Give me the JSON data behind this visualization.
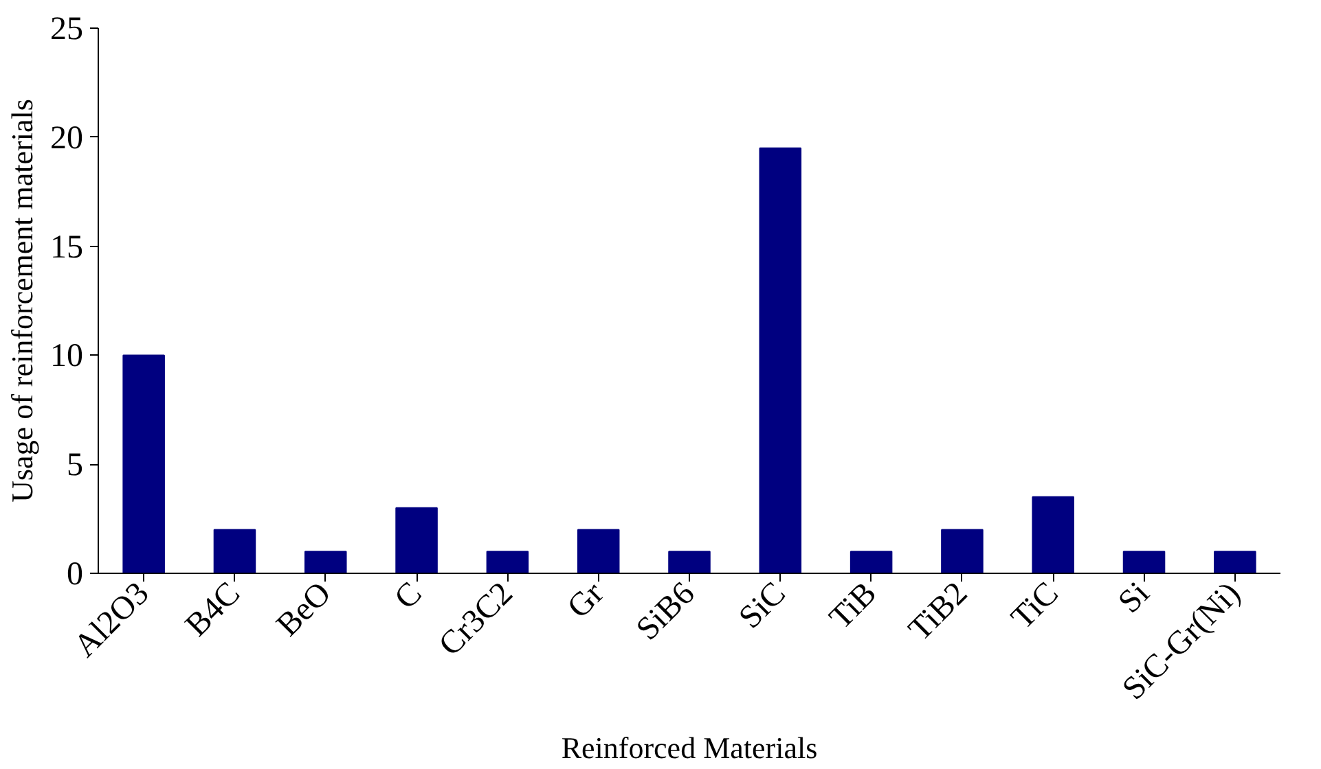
{
  "chart_data": {
    "type": "bar",
    "xlabel": "Reinforced Materials",
    "ylabel": "Usage of reinforcement materials",
    "categories": [
      "Al2O3",
      "B4C",
      "BeO",
      "C",
      "Cr3C2",
      "Gr",
      "SiB6",
      "SiC",
      "TiB",
      "TiB2",
      "TiC",
      "Si",
      "SiC-Gr(Ni)"
    ],
    "values": [
      10,
      2,
      1,
      3,
      1,
      2,
      1,
      19.5,
      1,
      2,
      3.5,
      1,
      1
    ],
    "color": "#000080",
    "ylim": [
      0,
      25
    ],
    "yticks": [
      0,
      5,
      10,
      15,
      20,
      25
    ],
    "grid": false
  }
}
